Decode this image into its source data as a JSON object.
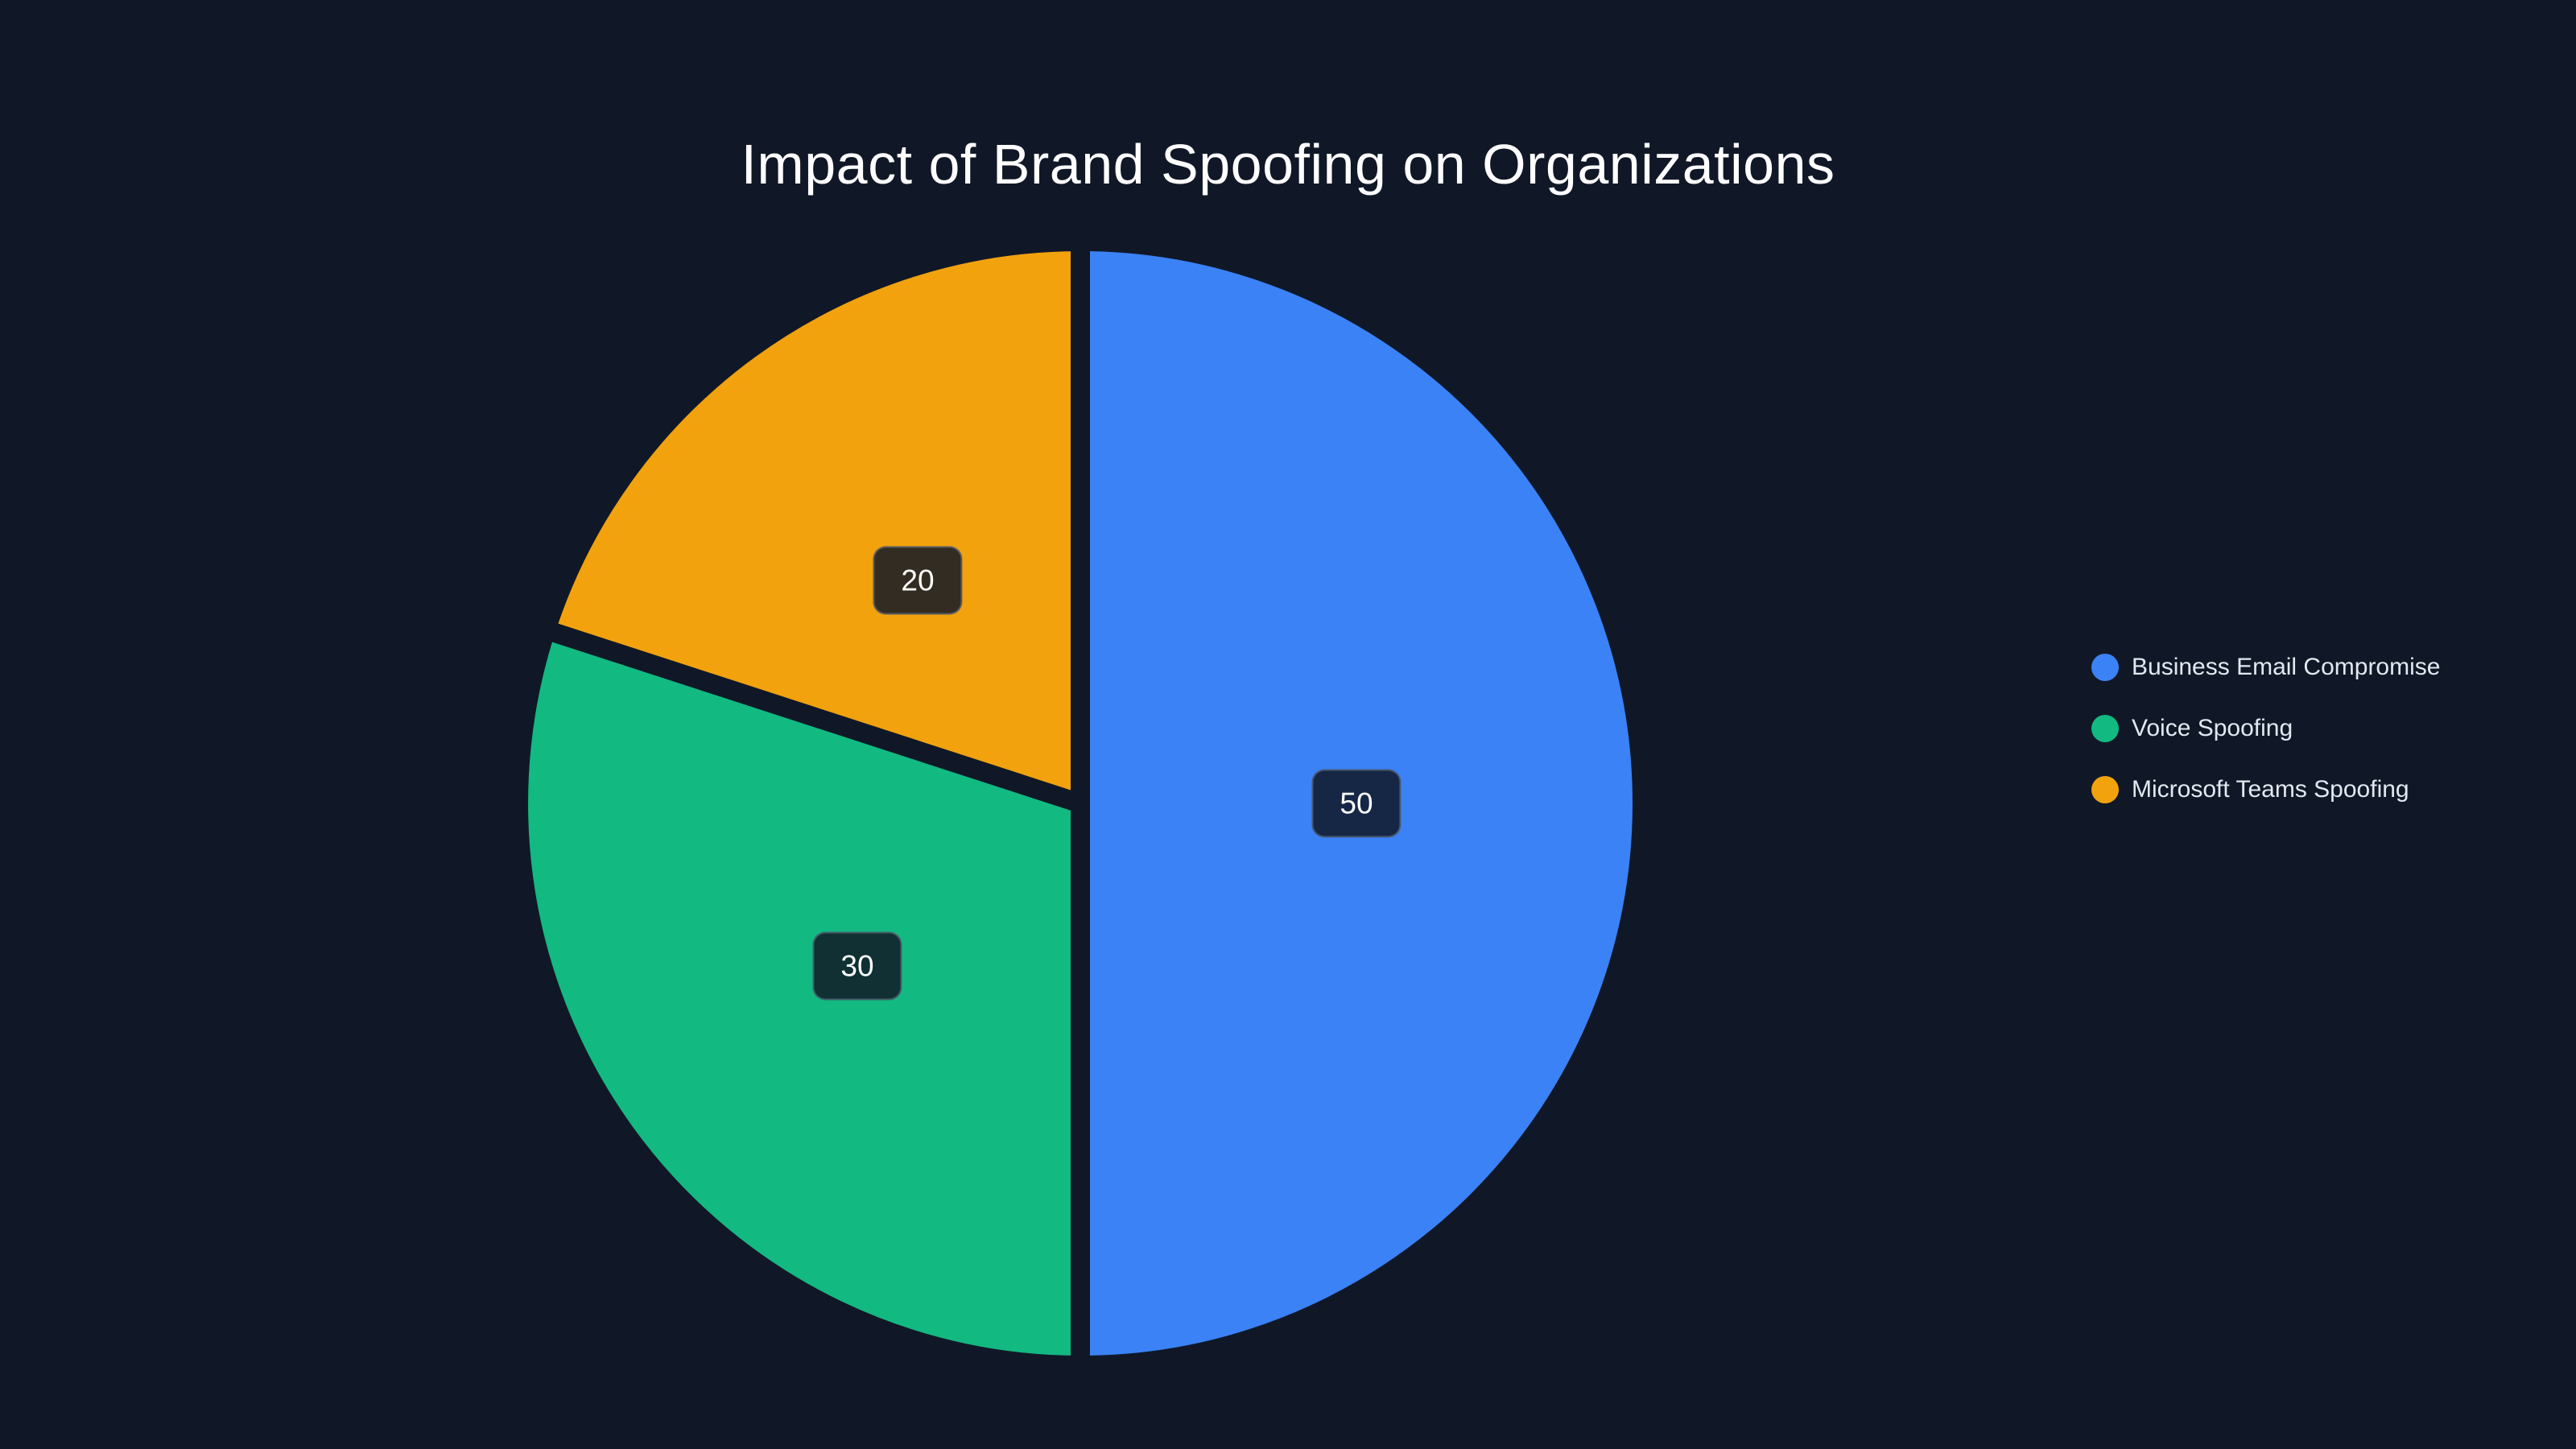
{
  "title": "Impact of Brand Spoofing on Organizations",
  "colors": {
    "background": "#101827",
    "title_text": "#ffffff",
    "legend_text": "#e2e8f0",
    "value_label_text": "#ffffff",
    "value_label_box_bg": "rgba(16, 24, 39, 0.85)",
    "value_label_box_border": "rgba(148, 163, 184, 0.4)",
    "slice_border": "#101827",
    "blue": "#3B82F6",
    "green": "#12B981",
    "orange": "#F2A20D"
  },
  "chart_data": {
    "type": "pie",
    "title": "Impact of Brand Spoofing on Organizations",
    "labels": [
      "Business Email Compromise",
      "Voice Spoofing",
      "Microsoft Teams Spoofing"
    ],
    "values": [
      50,
      30,
      20
    ],
    "value_labels": [
      "50",
      "30",
      "20"
    ],
    "slice_colors": [
      "#3B82F6",
      "#12B981",
      "#F2A20D"
    ],
    "total": 100,
    "start_angle_deg": 0,
    "direction": "clockwise",
    "legend_position": "right-middle",
    "data_label_radius_fraction": 0.5
  },
  "legend": {
    "items": [
      {
        "label": "Business Email Compromise",
        "color": "#3B82F6"
      },
      {
        "label": "Voice Spoofing",
        "color": "#12B981"
      },
      {
        "label": "Microsoft Teams Spoofing",
        "color": "#F2A20D"
      }
    ]
  }
}
